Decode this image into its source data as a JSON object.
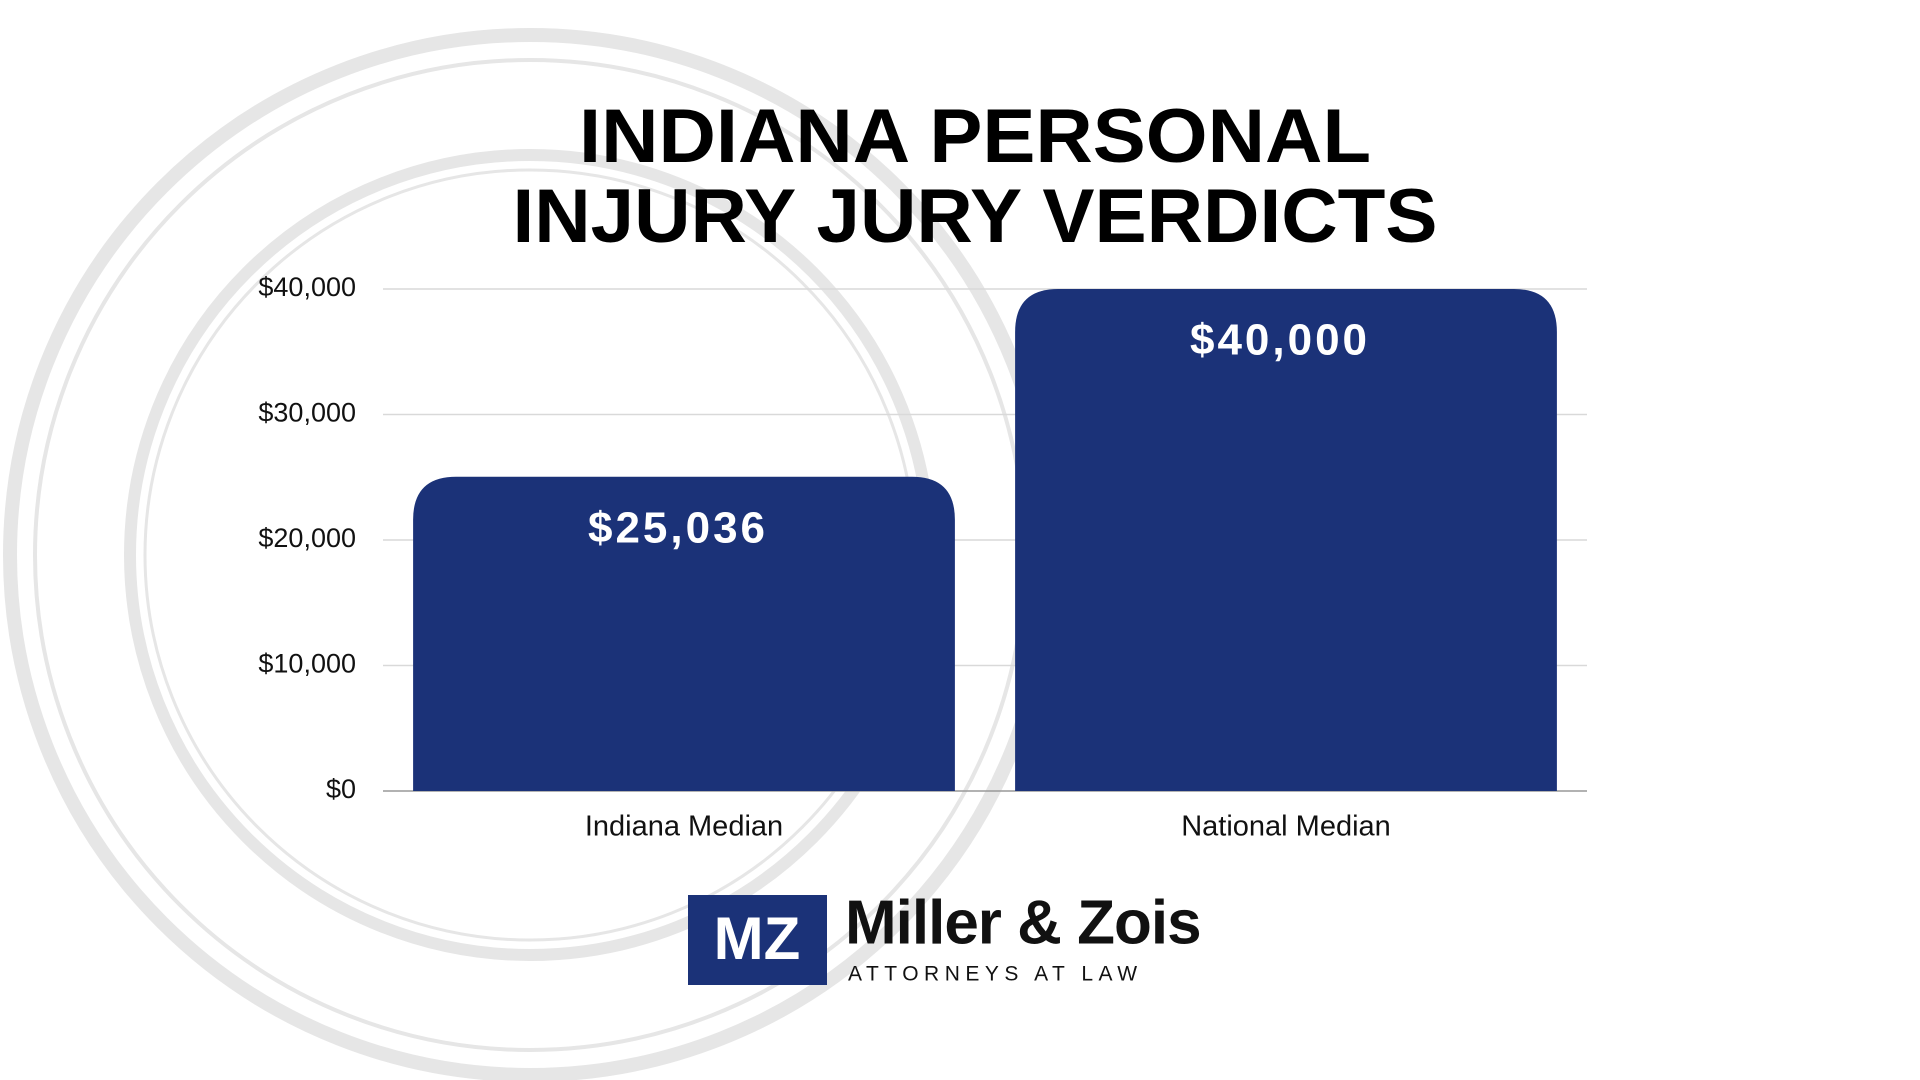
{
  "chart_data": {
    "type": "bar",
    "title": [
      "INDIANA PERSONAL",
      "INJURY JURY VERDICTS"
    ],
    "categories": [
      "Indiana Median",
      "National Median"
    ],
    "values": [
      25036,
      40000
    ],
    "value_labels": [
      "$25,036",
      "$40,000"
    ],
    "color": "#1b3278",
    "ylim": [
      0,
      40000
    ],
    "yticks": [
      {
        "value": 0,
        "label": "$0"
      },
      {
        "value": 10000,
        "label": "$10,000"
      },
      {
        "value": 20000,
        "label": "$20,000"
      },
      {
        "value": 30000,
        "label": "$30,000"
      },
      {
        "value": 40000,
        "label": "$40,000"
      }
    ],
    "grid": true
  },
  "logo": {
    "mark": "MZ",
    "name": "Miller & Zois",
    "tagline": "ATTORNEYS AT LAW"
  }
}
